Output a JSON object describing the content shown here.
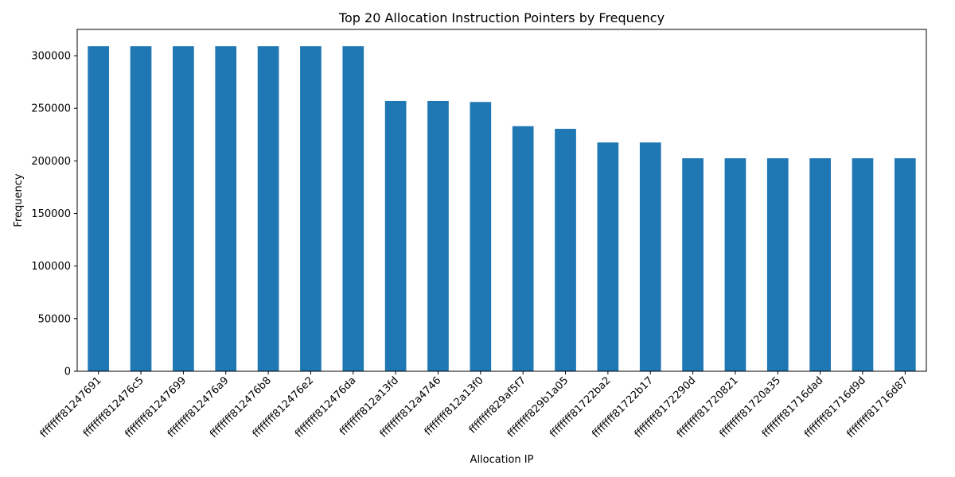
{
  "chart_data": {
    "type": "bar",
    "title": "Top 20 Allocation Instruction Pointers by Frequency",
    "xlabel": "Allocation IP",
    "ylabel": "Frequency",
    "ylim": [
      0,
      325000
    ],
    "yticks": [
      0,
      50000,
      100000,
      150000,
      200000,
      250000,
      300000
    ],
    "grid": false,
    "bar_color": "#1f77b4",
    "categories": [
      "ffffffff81247691",
      "ffffffff812476c5",
      "ffffffff81247699",
      "ffffffff812476a9",
      "ffffffff812476b8",
      "ffffffff812476e2",
      "ffffffff812476da",
      "ffffffff812a13fd",
      "ffffffff812a4746",
      "ffffffff812a13f0",
      "ffffffff829af5f7",
      "ffffffff829b1a05",
      "ffffffff81722ba2",
      "ffffffff81722b17",
      "ffffffff8172290d",
      "ffffffff81720821",
      "ffffffff81720a35",
      "ffffffff81716dad",
      "ffffffff81716d9d",
      "ffffffff81716d87"
    ],
    "values": [
      309000,
      309000,
      309000,
      309000,
      309000,
      309000,
      309000,
      257000,
      257000,
      256000,
      233000,
      230500,
      217500,
      217500,
      202500,
      202500,
      202500,
      202500,
      202500,
      202500
    ]
  }
}
